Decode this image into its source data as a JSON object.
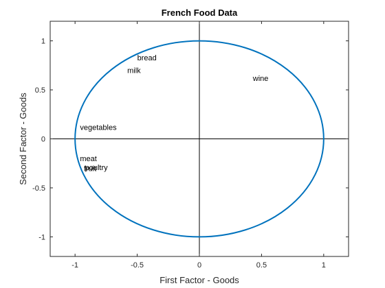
{
  "chart_data": {
    "type": "scatter",
    "title": "French Food Data",
    "xlabel": "First Factor - Goods",
    "ylabel": "Second Factor - Goods",
    "xlim": [
      -1.2,
      1.2
    ],
    "ylim": [
      -1.2,
      1.2
    ],
    "xticks": [
      -1,
      -0.5,
      0,
      0.5,
      1
    ],
    "yticks": [
      -1,
      -0.5,
      0,
      0.5,
      1
    ],
    "xtick_labels": [
      "-1",
      "-0.5",
      "0",
      "0.5",
      "1"
    ],
    "ytick_labels": [
      "-1",
      "-0.5",
      "0",
      "0.5",
      "1"
    ],
    "unit_circle": {
      "radius": 1,
      "color": "#0072BD"
    },
    "reference_lines": {
      "x": 0,
      "y": 0
    },
    "points": [
      {
        "label": "bread",
        "x": -0.5,
        "y": 0.83
      },
      {
        "label": "milk",
        "x": -0.58,
        "y": 0.7
      },
      {
        "label": "wine",
        "x": 0.43,
        "y": 0.62
      },
      {
        "label": "vegetables",
        "x": -0.96,
        "y": 0.12
      },
      {
        "label": "meat",
        "x": -0.96,
        "y": -0.2
      },
      {
        "label": "poultry",
        "x": -0.92,
        "y": -0.29
      },
      {
        "label": "fruit",
        "x": -0.93,
        "y": -0.3
      }
    ],
    "grid": false,
    "box": true
  }
}
